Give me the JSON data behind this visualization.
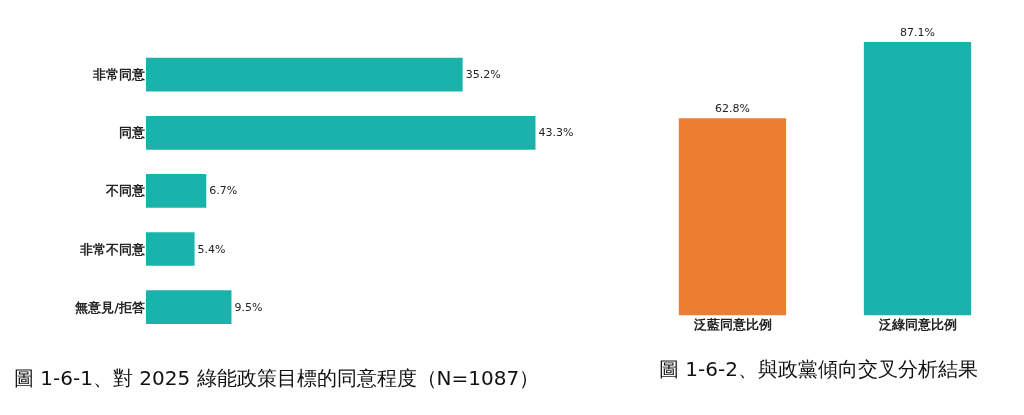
{
  "chart_data": [
    {
      "type": "bar",
      "orientation": "horizontal",
      "title": "圖 1-6-1、對 2025 綠能政策目標的同意程度（N=1087）",
      "categories": [
        "非常同意",
        "同意",
        "不同意",
        "非常不同意",
        "無意見/拒答"
      ],
      "values": [
        35.2,
        43.3,
        6.7,
        5.4,
        9.5
      ],
      "value_labels": [
        "35.2%",
        "43.3%",
        "6.7%",
        "5.4%",
        "9.5%"
      ],
      "color": "#1ab3ac"
    },
    {
      "type": "bar",
      "title": "圖 1-6-2、與政黨傾向交叉分析結果",
      "categories": [
        "泛藍同意比例",
        "泛綠同意比例"
      ],
      "values": [
        62.8,
        87.1
      ],
      "value_labels": [
        "62.8%",
        "87.1%"
      ],
      "colors": [
        "#ed7d31",
        "#1ab3ac"
      ]
    }
  ]
}
